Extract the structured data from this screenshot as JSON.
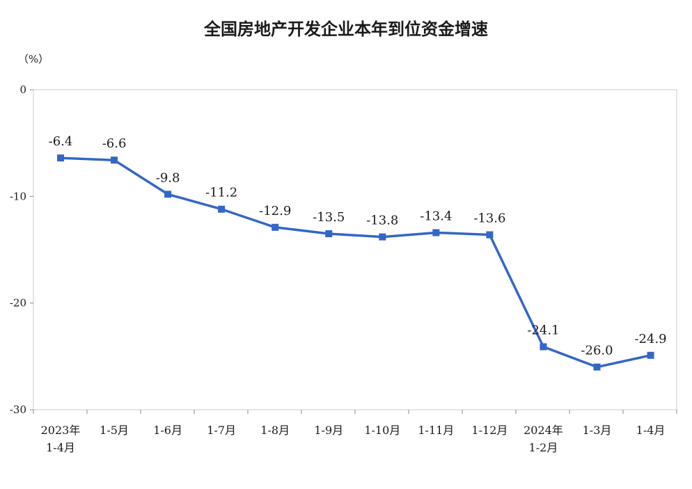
{
  "chart_data": {
    "type": "line",
    "title": "全国房地产开发企业本年到位资金增速",
    "ylabel": "（%）",
    "xlabel": "",
    "ylim": [
      -30,
      0
    ],
    "yticks": [
      "0",
      "-10",
      "-20",
      "-30"
    ],
    "grid": false,
    "legend": "none",
    "categories": [
      [
        "2023年",
        "1-4月"
      ],
      [
        "1-5月"
      ],
      [
        "1-6月"
      ],
      [
        "1-7月"
      ],
      [
        "1-8月"
      ],
      [
        "1-9月"
      ],
      [
        "1-10月"
      ],
      [
        "1-11月"
      ],
      [
        "1-12月"
      ],
      [
        "2024年",
        "1-2月"
      ],
      [
        "1-3月"
      ],
      [
        "1-4月"
      ]
    ],
    "series": [
      {
        "values": [
          -6.4,
          -6.6,
          -9.8,
          -11.2,
          -12.9,
          -13.5,
          -13.8,
          -13.4,
          -13.6,
          -24.1,
          -26.0,
          -24.9
        ],
        "labels": [
          "-6.4",
          "-6.6",
          "-9.8",
          "-11.2",
          "-12.9",
          "-13.5",
          "-13.8",
          "-13.4",
          "-13.6",
          "-24.1",
          "-26.0",
          "-24.9"
        ],
        "color": "#3366c7"
      }
    ]
  }
}
